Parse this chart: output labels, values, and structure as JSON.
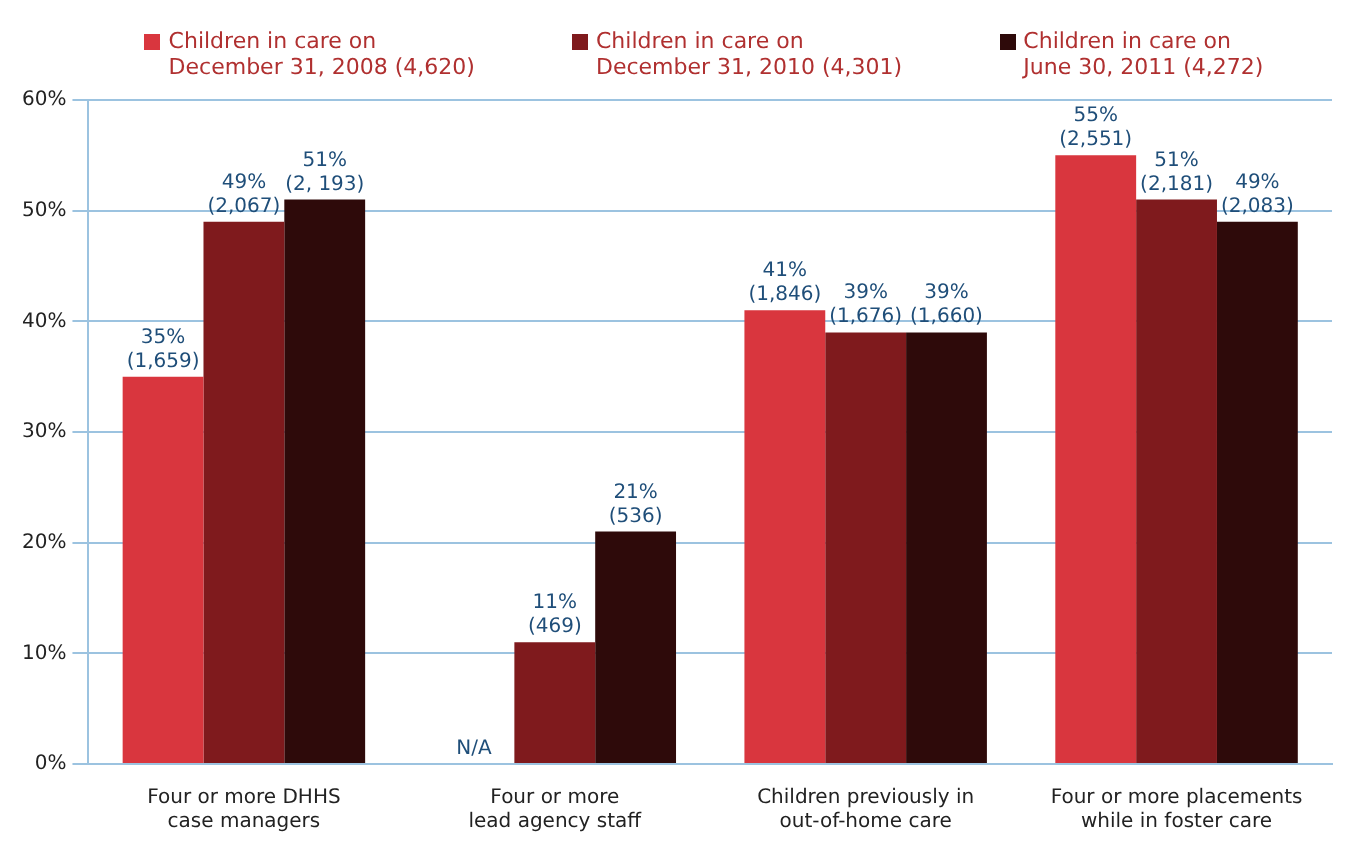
{
  "chart_data": {
    "type": "bar",
    "categories": [
      "Four or more DHHS\ncase managers",
      "Four or more\nlead agency staff",
      "Children previously in\nout-of-home care",
      "Four or more placements\nwhile in foster care"
    ],
    "series": [
      {
        "name": "Children in care on\nDecember 31, 2008 (4,620)",
        "color": "#d9363e",
        "values": [
          35,
          null,
          41,
          55
        ],
        "value_labels": [
          "35%\n(1,659)",
          "N/A",
          "41%\n(1,846)",
          "55%\n(2,551)"
        ]
      },
      {
        "name": "Children in care on\nDecember 31, 2010 (4,301)",
        "color": "#7f1a1d",
        "values": [
          49,
          11,
          39,
          51
        ],
        "value_labels": [
          "49%\n(2,067)",
          "11%\n(469)",
          "39%\n(1,676)",
          "51%\n(2,181)"
        ]
      },
      {
        "name": "Children in care on\nJune 30, 2011 (4,272)",
        "color": "#2e0a0a",
        "values": [
          51,
          21,
          39,
          49
        ],
        "value_labels": [
          "51%\n(2, 193)",
          "21%\n(536)",
          "39%\n(1,660)",
          "49%\n(2,083)"
        ]
      }
    ],
    "ylim": [
      0,
      60
    ],
    "yticks": [
      {
        "value": 0,
        "label": "0%"
      },
      {
        "value": 10,
        "label": "10%"
      },
      {
        "value": 20,
        "label": "20%"
      },
      {
        "value": 30,
        "label": "30%"
      },
      {
        "value": 40,
        "label": "40%"
      },
      {
        "value": 50,
        "label": "50%"
      },
      {
        "value": 60,
        "label": "60%"
      }
    ],
    "grid": "y",
    "legend": "top"
  }
}
